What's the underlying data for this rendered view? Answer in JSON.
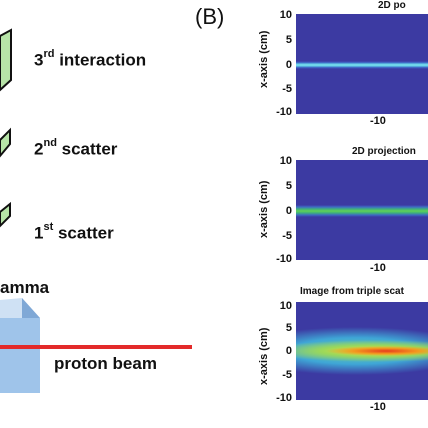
{
  "left_labels": {
    "interaction3_prefix": "3",
    "interaction3_sup": "rd",
    "interaction3_rest": " interaction",
    "scatter2_prefix": "2",
    "scatter2_sup": "nd",
    "scatter2_rest": " scatter",
    "scatter1_prefix": "1",
    "scatter1_sup": "st",
    "scatter1_rest": " scatter",
    "gamma": "amma",
    "proton_beam": "proton beam"
  },
  "panel_b_label": "(B)",
  "panels": [
    {
      "title": "2D po",
      "ylabel": "x-axis (cm)",
      "yticks": [
        "10",
        "5",
        "0",
        "-5",
        "-10"
      ],
      "xtick": "-10"
    },
    {
      "title": "2D projection",
      "ylabel": "x-axis (cm)",
      "yticks": [
        "10",
        "5",
        "0",
        "-5",
        "-10"
      ],
      "xtick": "-10"
    },
    {
      "title": "Image from triple scat",
      "ylabel": "x-axis (cm)",
      "yticks": [
        "10",
        "5",
        "0",
        "-5",
        "-10"
      ],
      "xtick": "-10"
    }
  ],
  "colors": {
    "detector_green": "#b7e4a8",
    "heatmap_bg": "#3c3aa2",
    "beam_red": "#e32a2a",
    "cube_blue": "#9fc4ea"
  }
}
